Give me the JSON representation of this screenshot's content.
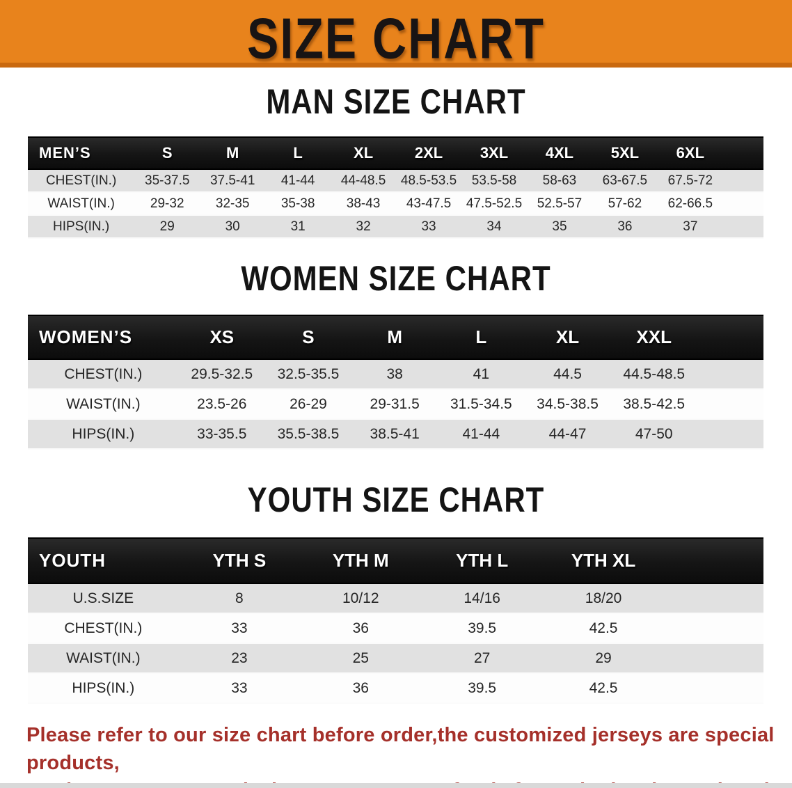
{
  "banner": {
    "title": "SIZE CHART"
  },
  "colors": {
    "banner_bg": "#E8831C",
    "banner_border": "#C9690F",
    "table_header_bg": "#151515",
    "stripe_row": "#E1E1E1",
    "disclaimer_red": "#A5302A"
  },
  "sections": [
    {
      "heading": "MAN SIZE CHART",
      "table": {
        "corner_label": "MEN’S",
        "size_headers": [
          "S",
          "M",
          "L",
          "XL",
          "2XL",
          "3XL",
          "4XL",
          "5XL",
          "6XL"
        ],
        "rows": [
          {
            "label": "CHEST(IN.)",
            "values": [
              "35-37.5",
              "37.5-41",
              "41-44",
              "44-48.5",
              "48.5-53.5",
              "53.5-58",
              "58-63",
              "63-67.5",
              "67.5-72"
            ]
          },
          {
            "label": "WAIST(IN.)",
            "values": [
              "29-32",
              "32-35",
              "35-38",
              "38-43",
              "43-47.5",
              "47.5-52.5",
              "52.5-57",
              "57-62",
              "62-66.5"
            ]
          },
          {
            "label": "HIPS(IN.)",
            "values": [
              "29",
              "30",
              "31",
              "32",
              "33",
              "34",
              "35",
              "36",
              "37"
            ]
          }
        ]
      }
    },
    {
      "heading": "WOMEN SIZE CHART",
      "table": {
        "corner_label": "WOMEN’S",
        "size_headers": [
          "XS",
          "S",
          "M",
          "L",
          "XL",
          "XXL"
        ],
        "rows": [
          {
            "label": "CHEST(IN.)",
            "values": [
              "29.5-32.5",
              "32.5-35.5",
              "38",
              "41",
              "44.5",
              "44.5-48.5"
            ]
          },
          {
            "label": "WAIST(IN.)",
            "values": [
              "23.5-26",
              "26-29",
              "29-31.5",
              "31.5-34.5",
              "34.5-38.5",
              "38.5-42.5"
            ]
          },
          {
            "label": "HIPS(IN.)",
            "values": [
              "33-35.5",
              "35.5-38.5",
              "38.5-41",
              "41-44",
              "44-47",
              "47-50"
            ]
          }
        ]
      }
    },
    {
      "heading": "YOUTH SIZE CHART",
      "table": {
        "corner_label": "YOUTH",
        "size_headers": [
          "YTH S",
          "YTH M",
          "YTH L",
          "YTH XL"
        ],
        "rows": [
          {
            "label": "U.S.SIZE",
            "values": [
              "8",
              "10/12",
              "14/16",
              "18/20"
            ]
          },
          {
            "label": "CHEST(IN.)",
            "values": [
              "33",
              "36",
              "39.5",
              "42.5"
            ]
          },
          {
            "label": "WAIST(IN.)",
            "values": [
              "23",
              "25",
              "27",
              "29"
            ]
          },
          {
            "label": "HIPS(IN.)",
            "values": [
              "33",
              "36",
              "39.5",
              "42.5"
            ]
          }
        ]
      }
    }
  ],
  "disclaimer": {
    "line1": "Please refer to our size chart before order,the customized jerseys are special products,",
    "line2": "we don't accept cancel, change, teturn or refund after order has been placed!"
  }
}
